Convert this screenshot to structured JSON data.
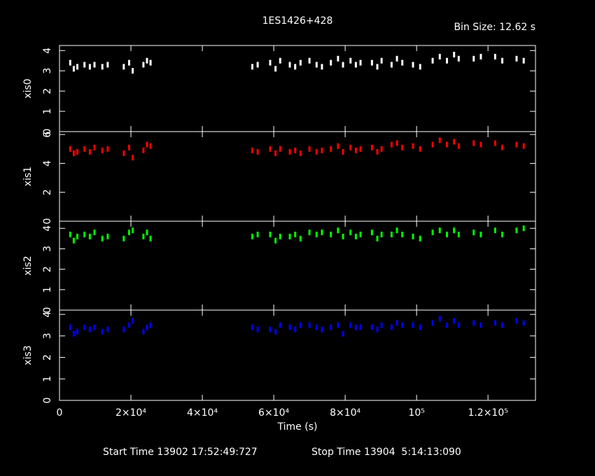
{
  "title": "1ES1426+428",
  "bin_size": "Bin Size: 12.62 s",
  "xlabel": "Time (s)",
  "start_time": "Start Time 13902 17:52:49:727",
  "stop_time": "Stop Time 13904  5:14:13:090",
  "chart_data": [
    {
      "type": "scatter",
      "ylabel": "xis0",
      "color": "#ffffff",
      "x": [
        3000,
        4000,
        5000,
        7000,
        8500,
        9800,
        12000,
        13500,
        18000,
        19500,
        20500,
        23500,
        24500,
        25500,
        54000,
        55500,
        59000,
        60500,
        61800,
        64500,
        66000,
        67500,
        70000,
        72000,
        73500,
        76000,
        78000,
        79400,
        81500,
        83000,
        84300,
        87500,
        89000,
        90200,
        93000,
        94500,
        96000,
        99000,
        101000,
        104500,
        106500,
        108500,
        110500,
        111800,
        116000,
        118000,
        122000,
        124000,
        128000,
        130000
      ],
      "values": [
        3.4,
        3.1,
        3.2,
        3.3,
        3.2,
        3.3,
        3.2,
        3.3,
        3.2,
        3.4,
        3.0,
        3.3,
        3.5,
        3.4,
        3.2,
        3.3,
        3.4,
        3.1,
        3.5,
        3.3,
        3.2,
        3.4,
        3.5,
        3.3,
        3.2,
        3.4,
        3.6,
        3.3,
        3.5,
        3.3,
        3.4,
        3.4,
        3.2,
        3.5,
        3.3,
        3.6,
        3.4,
        3.3,
        3.2,
        3.5,
        3.7,
        3.5,
        3.8,
        3.6,
        3.6,
        3.7,
        3.7,
        3.5,
        3.6,
        3.5
      ],
      "xlim": [
        0,
        133300
      ],
      "ylim": [
        0,
        4.25
      ],
      "yticks": [
        0,
        1,
        2,
        3,
        4
      ],
      "xticks": [
        0,
        {
          "value": 20000,
          "label": "2×10⁴"
        },
        {
          "value": 40000,
          "label": "4×10⁴"
        },
        {
          "value": 60000,
          "label": "6×10⁴"
        },
        {
          "value": 80000,
          "label": "8×10⁴"
        },
        {
          "value": 100000,
          "label": "10⁵"
        },
        {
          "value": 120000,
          "label": "1.2×10⁵"
        }
      ]
    },
    {
      "type": "scatter",
      "ylabel": "xis1",
      "color": "#ff0000",
      "x": [
        3000,
        4000,
        5000,
        7000,
        8500,
        9800,
        12000,
        13500,
        18000,
        19500,
        20500,
        23500,
        24500,
        25500,
        54000,
        55500,
        59000,
        60500,
        61800,
        64500,
        66000,
        67500,
        70000,
        72000,
        73500,
        76000,
        78000,
        79400,
        81500,
        83000,
        84300,
        87500,
        89000,
        90200,
        93000,
        94500,
        96000,
        99000,
        101000,
        104500,
        106500,
        108500,
        110500,
        111800,
        116000,
        118000,
        122000,
        124000,
        128000,
        130000
      ],
      "values": [
        5.0,
        4.7,
        4.8,
        5.0,
        4.8,
        5.1,
        4.9,
        5.0,
        4.7,
        5.1,
        4.4,
        4.9,
        5.3,
        5.2,
        4.9,
        4.8,
        5.0,
        4.7,
        5.0,
        4.8,
        4.9,
        4.7,
        5.0,
        4.8,
        4.9,
        5.0,
        5.2,
        4.8,
        5.1,
        4.9,
        5.0,
        5.1,
        4.8,
        5.0,
        5.3,
        5.4,
        5.1,
        5.2,
        5.0,
        5.3,
        5.6,
        5.3,
        5.5,
        5.2,
        5.4,
        5.3,
        5.4,
        5.1,
        5.3,
        5.2
      ],
      "xlim": [
        0,
        133300
      ],
      "ylim": [
        0,
        6.2
      ],
      "yticks": [
        0,
        2,
        4,
        6
      ],
      "xticks": [
        0,
        {
          "value": 20000,
          "label": "2×10⁴"
        },
        {
          "value": 40000,
          "label": "4×10⁴"
        },
        {
          "value": 60000,
          "label": "6×10⁴"
        },
        {
          "value": 80000,
          "label": "8×10⁴"
        },
        {
          "value": 100000,
          "label": "10⁵"
        },
        {
          "value": 120000,
          "label": "1.2×10⁵"
        }
      ]
    },
    {
      "type": "scatter",
      "ylabel": "xis2",
      "color": "#00ff00",
      "x": [
        3000,
        4000,
        5000,
        7000,
        8500,
        9800,
        12000,
        13500,
        18000,
        19500,
        20500,
        23500,
        24500,
        25500,
        54000,
        55500,
        59000,
        60500,
        61800,
        64500,
        66000,
        67500,
        70000,
        72000,
        73500,
        76000,
        78000,
        79400,
        81500,
        83000,
        84300,
        87500,
        89000,
        90200,
        93000,
        94500,
        96000,
        99000,
        101000,
        104500,
        106500,
        108500,
        110500,
        111800,
        116000,
        118000,
        122000,
        124000,
        128000,
        130000
      ],
      "values": [
        3.7,
        3.4,
        3.6,
        3.7,
        3.6,
        3.8,
        3.5,
        3.6,
        3.5,
        3.8,
        3.9,
        3.6,
        3.8,
        3.5,
        3.6,
        3.7,
        3.7,
        3.4,
        3.6,
        3.6,
        3.7,
        3.5,
        3.8,
        3.7,
        3.8,
        3.7,
        3.9,
        3.6,
        3.8,
        3.6,
        3.7,
        3.8,
        3.5,
        3.7,
        3.7,
        3.9,
        3.7,
        3.6,
        3.5,
        3.8,
        3.9,
        3.7,
        3.9,
        3.7,
        3.8,
        3.7,
        3.9,
        3.7,
        3.9,
        4.0
      ],
      "xlim": [
        0,
        133300
      ],
      "ylim": [
        0,
        4.35
      ],
      "yticks": [
        0,
        1,
        2,
        3,
        4
      ],
      "xticks": [
        0,
        {
          "value": 20000,
          "label": "2×10⁴"
        },
        {
          "value": 40000,
          "label": "4×10⁴"
        },
        {
          "value": 60000,
          "label": "6×10⁴"
        },
        {
          "value": 80000,
          "label": "8×10⁴"
        },
        {
          "value": 100000,
          "label": "10⁵"
        },
        {
          "value": 120000,
          "label": "1.2×10⁵"
        }
      ]
    },
    {
      "type": "scatter",
      "ylabel": "xis3",
      "color": "#0000ff",
      "x": [
        3000,
        4000,
        5000,
        7000,
        8500,
        9800,
        12000,
        13500,
        18000,
        19500,
        20500,
        23500,
        24500,
        25500,
        54000,
        55500,
        59000,
        60500,
        61800,
        64500,
        66000,
        67500,
        70000,
        72000,
        73500,
        76000,
        78000,
        79400,
        81500,
        83000,
        84300,
        87500,
        89000,
        90200,
        93000,
        94500,
        96000,
        99000,
        101000,
        104500,
        106500,
        108500,
        110500,
        111800,
        116000,
        118000,
        122000,
        124000,
        128000,
        130000
      ],
      "values": [
        3.4,
        3.1,
        3.2,
        3.4,
        3.3,
        3.4,
        3.2,
        3.3,
        3.3,
        3.5,
        3.7,
        3.2,
        3.4,
        3.5,
        3.4,
        3.3,
        3.3,
        3.2,
        3.5,
        3.4,
        3.3,
        3.5,
        3.5,
        3.4,
        3.3,
        3.4,
        3.5,
        3.1,
        3.5,
        3.4,
        3.4,
        3.4,
        3.3,
        3.5,
        3.4,
        3.6,
        3.5,
        3.5,
        3.4,
        3.6,
        3.8,
        3.5,
        3.7,
        3.5,
        3.6,
        3.5,
        3.6,
        3.5,
        3.7,
        3.6
      ],
      "xlim": [
        0,
        133300
      ],
      "ylim": [
        0,
        4.2
      ],
      "yticks": [
        0,
        1,
        2,
        3,
        4
      ],
      "xticks": [
        0,
        {
          "value": 20000,
          "label": "2×10⁴"
        },
        {
          "value": 40000,
          "label": "4×10⁴"
        },
        {
          "value": 60000,
          "label": "6×10⁴"
        },
        {
          "value": 80000,
          "label": "8×10⁴"
        },
        {
          "value": 100000,
          "label": "10⁵"
        },
        {
          "value": 120000,
          "label": "1.2×10⁵"
        }
      ]
    }
  ]
}
